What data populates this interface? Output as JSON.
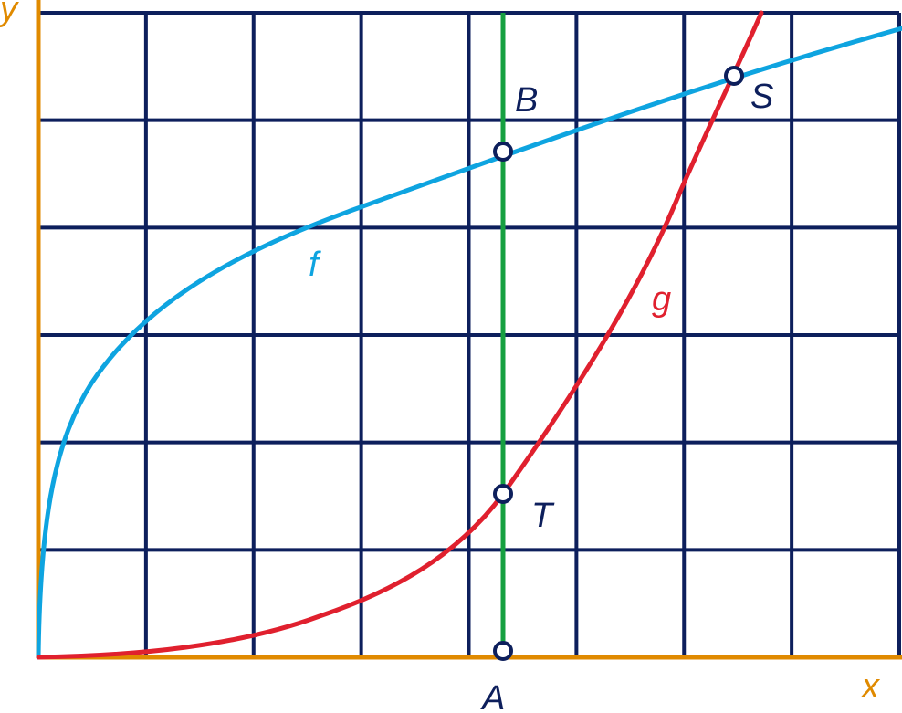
{
  "axes": {
    "x_label": "x",
    "y_label": "y",
    "axis_color": "#e08a00"
  },
  "grid": {
    "cols": 8,
    "rows": 6,
    "line_color": "#0d1f5c"
  },
  "curves": {
    "f": {
      "label": "f",
      "color": "#0ea4e0"
    },
    "g": {
      "label": "g",
      "color": "#e0202e"
    }
  },
  "vertical_line": {
    "color": "#16a040"
  },
  "points": {
    "A": {
      "label": "A"
    },
    "B": {
      "label": "B"
    },
    "T": {
      "label": "T"
    },
    "S": {
      "label": "S"
    }
  },
  "label_color": "#0d1f5c"
}
